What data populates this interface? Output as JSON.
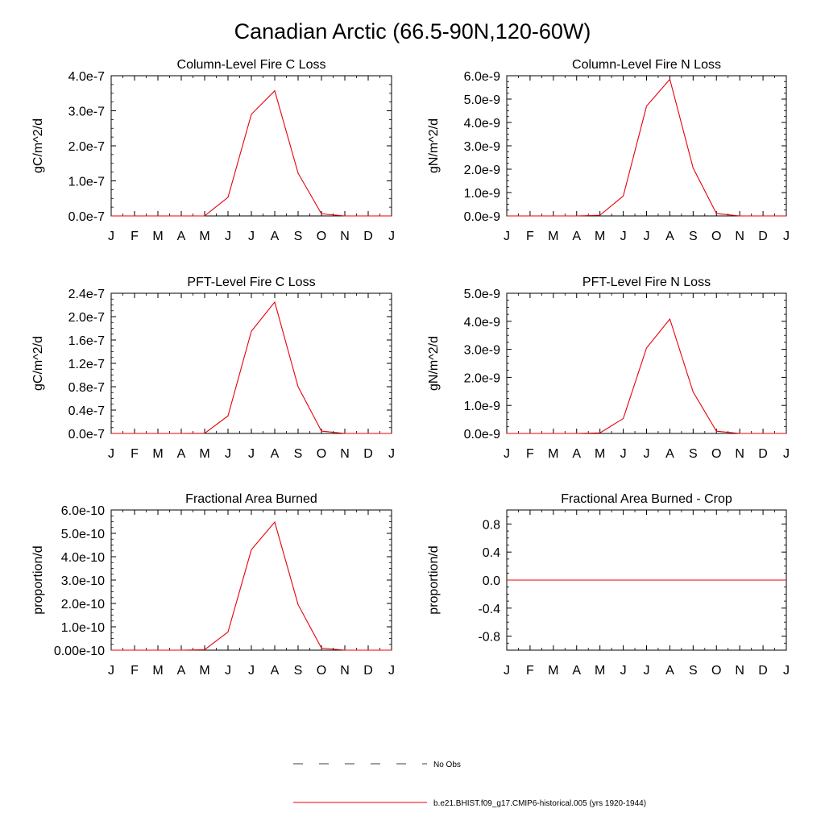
{
  "title": "Canadian Arctic (66.5-90N,120-60W)",
  "colors": {
    "series": "#e8000b",
    "obs": "#000000",
    "axis": "#000000"
  },
  "legend": [
    {
      "label": "No Obs",
      "style": "dashed"
    },
    {
      "label": "b.e21.BHIST.f09_g17.CMIP6-historical.005 (yrs 1920-1944)",
      "style": "solid"
    }
  ],
  "chart_data": [
    {
      "type": "line",
      "title": "Column-Level Fire C Loss",
      "ylabel": "gC/m^2/d",
      "categories": [
        "J",
        "F",
        "M",
        "A",
        "M",
        "J",
        "J",
        "A",
        "S",
        "O",
        "N",
        "D",
        "J"
      ],
      "series": [
        {
          "name": "b.e21.BHIST.f09_g17.CMIP6-historical.005 (yrs 1920-1944)",
          "values": [
            0,
            0,
            0,
            0,
            2e-10,
            5.3e-08,
            2.9e-07,
            3.57e-07,
            1.22e-07,
            6e-09,
            0,
            0,
            0
          ]
        }
      ],
      "ylim": [
        0,
        4e-07
      ],
      "yticks": [
        0,
        1e-07,
        2e-07,
        3e-07,
        4e-07
      ],
      "yticklabels": [
        "0.0e-7",
        "1.0e-7",
        "2.0e-7",
        "3.0e-7",
        "4.0e-7"
      ]
    },
    {
      "type": "line",
      "title": "Column-Level Fire N Loss",
      "ylabel": "gN/m^2/d",
      "categories": [
        "J",
        "F",
        "M",
        "A",
        "M",
        "J",
        "J",
        "A",
        "S",
        "O",
        "N",
        "D",
        "J"
      ],
      "series": [
        {
          "name": "b.e21.BHIST.f09_g17.CMIP6-historical.005 (yrs 1920-1944)",
          "values": [
            0,
            0,
            0,
            0,
            3e-11,
            8.5e-10,
            4.7e-09,
            5.85e-09,
            2.05e-09,
            1e-10,
            0,
            0,
            0
          ]
        }
      ],
      "ylim": [
        0,
        6e-09
      ],
      "yticks": [
        0,
        1e-09,
        2e-09,
        3e-09,
        4e-09,
        5e-09,
        6e-09
      ],
      "yticklabels": [
        "0.0e-9",
        "1.0e-9",
        "2.0e-9",
        "3.0e-9",
        "4.0e-9",
        "5.0e-9",
        "6.0e-9"
      ]
    },
    {
      "type": "line",
      "title": "PFT-Level Fire C Loss",
      "ylabel": "gC/m^2/d",
      "categories": [
        "J",
        "F",
        "M",
        "A",
        "M",
        "J",
        "J",
        "A",
        "S",
        "O",
        "N",
        "D",
        "J"
      ],
      "series": [
        {
          "name": "b.e21.BHIST.f09_g17.CMIP6-historical.005 (yrs 1920-1944)",
          "values": [
            0,
            0,
            0,
            0,
            2e-10,
            3e-08,
            1.75e-07,
            2.25e-07,
            8e-08,
            4e-09,
            0,
            0,
            0
          ]
        }
      ],
      "ylim": [
        0,
        2.4e-07
      ],
      "yticks": [
        0,
        4e-08,
        8e-08,
        1.2e-07,
        1.6e-07,
        2e-07,
        2.4e-07
      ],
      "yticklabels": [
        "0.0e-7",
        "0.4e-7",
        "0.8e-7",
        "1.2e-7",
        "1.6e-7",
        "2.0e-7",
        "2.4e-7"
      ]
    },
    {
      "type": "line",
      "title": "PFT-Level Fire N Loss",
      "ylabel": "gN/m^2/d",
      "categories": [
        "J",
        "F",
        "M",
        "A",
        "M",
        "J",
        "J",
        "A",
        "S",
        "O",
        "N",
        "D",
        "J"
      ],
      "series": [
        {
          "name": "b.e21.BHIST.f09_g17.CMIP6-historical.005 (yrs 1920-1944)",
          "values": [
            0,
            0,
            0,
            0,
            2e-11,
            5.3e-10,
            3.05e-09,
            4.08e-09,
            1.48e-09,
            8e-11,
            0,
            0,
            0
          ]
        }
      ],
      "ylim": [
        0,
        5e-09
      ],
      "yticks": [
        0,
        1e-09,
        2e-09,
        3e-09,
        4e-09,
        5e-09
      ],
      "yticklabels": [
        "0.0e-9",
        "1.0e-9",
        "2.0e-9",
        "3.0e-9",
        "4.0e-9",
        "5.0e-9"
      ]
    },
    {
      "type": "line",
      "title": "Fractional Area Burned",
      "ylabel": "proportion/d",
      "categories": [
        "J",
        "F",
        "M",
        "A",
        "M",
        "J",
        "J",
        "A",
        "S",
        "O",
        "N",
        "D",
        "J"
      ],
      "series": [
        {
          "name": "b.e21.BHIST.f09_g17.CMIP6-historical.005 (yrs 1920-1944)",
          "values": [
            0,
            0,
            0,
            0,
            2e-12,
            7.8e-11,
            4.3e-10,
            5.48e-10,
            1.95e-10,
            9e-12,
            0,
            0,
            0
          ]
        }
      ],
      "ylim": [
        0,
        6e-10
      ],
      "yticks": [
        0,
        1e-10,
        2e-10,
        3e-10,
        4e-10,
        5e-10,
        6e-10
      ],
      "yticklabels": [
        "0.00e-10",
        "1.0e-10",
        "2.0e-10",
        "3.0e-10",
        "4.0e-10",
        "5.0e-10",
        "6.0e-10"
      ]
    },
    {
      "type": "line",
      "title": "Fractional Area Burned - Crop",
      "ylabel": "proportion/d",
      "categories": [
        "J",
        "F",
        "M",
        "A",
        "M",
        "J",
        "J",
        "A",
        "S",
        "O",
        "N",
        "D",
        "J"
      ],
      "series": [
        {
          "name": "b.e21.BHIST.f09_g17.CMIP6-historical.005 (yrs 1920-1944)",
          "values": [
            0,
            0,
            0,
            0,
            0,
            0,
            0,
            0,
            0,
            0,
            0,
            0,
            0
          ]
        }
      ],
      "ylim": [
        -1.0,
        1.0
      ],
      "yticks": [
        -0.8,
        -0.4,
        0.0,
        0.4,
        0.8
      ],
      "yticklabels": [
        "-0.8",
        "-0.4",
        "0.0",
        "0.4",
        "0.8"
      ]
    }
  ]
}
